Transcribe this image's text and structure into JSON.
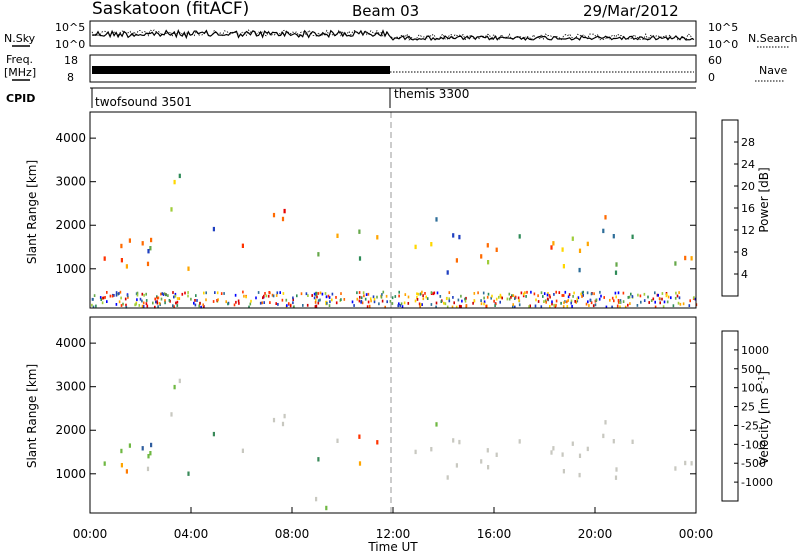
{
  "header": {
    "station": "Saskatoon (fitACF)",
    "beam": "Beam 03",
    "date": "29/Mar/2012"
  },
  "top_panels": {
    "nsky_label": "N.Sky",
    "nsky_ticks": [
      "10^5",
      "10^0"
    ],
    "nsearch_label": "N.Search",
    "nsearch_ticks": [
      "10^5",
      "10^0"
    ],
    "freq_label_line1": "Freq.",
    "freq_label_line2": "[MHz]",
    "freq_ticks": [
      "18",
      "8"
    ],
    "nave_label": "Nave",
    "nave_ticks": [
      "60",
      "0"
    ],
    "cpid_label": "CPID",
    "cpid_modes": [
      {
        "name": "twofsound 3501",
        "start": "00:00"
      },
      {
        "name": "themis 3300",
        "start": "12:00"
      }
    ]
  },
  "colorbars": {
    "power": {
      "label": "Power [dB]",
      "ticks": [
        "28",
        "24",
        "20",
        "16",
        "12",
        "8",
        "4"
      ],
      "colors": [
        "#0000ff",
        "#1f3fc0",
        "#2e6e99",
        "#2e8b57",
        "#66a84a",
        "#9fcd3a",
        "#ffd700",
        "#ffa500",
        "#ff6a00",
        "#ff3300",
        "#e60000",
        "#cc0000"
      ]
    },
    "velocity": {
      "label": "Velocity [m s^-1]",
      "ticks": [
        "1000",
        "500",
        "100",
        "25",
        "-25",
        "-100",
        "-500",
        "-1000"
      ],
      "colors": [
        "#2b3aa8",
        "#2f5d9e",
        "#3a8a5a",
        "#6fb843",
        "#c8c8c0",
        "#ffa500",
        "#ff7a00",
        "#ff3300",
        "#e60000"
      ]
    }
  },
  "chart_data": [
    {
      "type": "heatmap",
      "title": "",
      "ylabel": "Slant Range [km]",
      "xlabel": "",
      "ylim": [
        100,
        4600
      ],
      "xlim": [
        "00:00",
        "24:00"
      ],
      "yticks": [
        "4000",
        "3000",
        "2000",
        "1000"
      ],
      "colorbar": "Power [dB]",
      "clim": [
        0,
        30
      ]
    },
    {
      "type": "heatmap",
      "title": "",
      "ylabel": "Slant Range [km]",
      "xlabel": "Time UT",
      "ylim": [
        100,
        4600
      ],
      "xlim": [
        "00:00",
        "24:00"
      ],
      "yticks": [
        "4000",
        "3000",
        "2000",
        "1000"
      ],
      "xticks": [
        "00:00",
        "04:00",
        "08:00",
        "12:00",
        "16:00",
        "20:00",
        "00:00"
      ],
      "colorbar": "Velocity [m s^-1]",
      "clim": [
        -1000,
        1000
      ]
    }
  ]
}
